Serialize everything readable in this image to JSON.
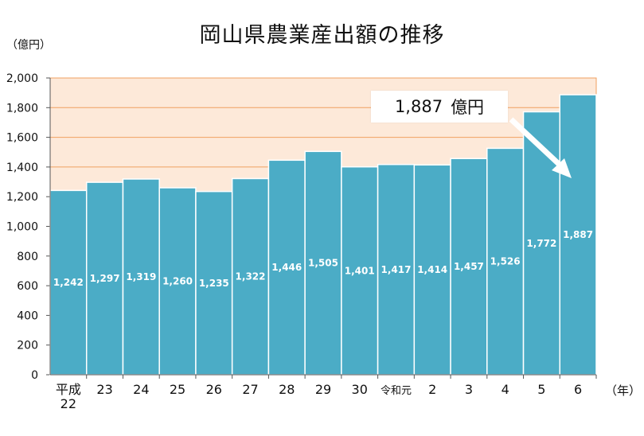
{
  "header": {
    "title": "岡山県農業産出額の推移",
    "y_unit": "（億円）",
    "x_unit": "（年）"
  },
  "callout": {
    "value": "1,887",
    "unit": "億円"
  },
  "colors": {
    "bar": "#4bacc6",
    "plot_bg": "#fde9d9",
    "grid": "#f0a060",
    "bar_label": "#ffffff",
    "arrow": "#ffffff"
  },
  "chart_data": {
    "type": "bar",
    "title": "岡山県農業産出額の推移",
    "ylabel": "（億円）",
    "xlabel": "（年）",
    "ylim": [
      0,
      2000
    ],
    "yticks": [
      "0",
      "200",
      "400",
      "600",
      "800",
      "1,000",
      "1,200",
      "1,400",
      "1,600",
      "1,800",
      "2,000"
    ],
    "grid": true,
    "categories": [
      "平成22",
      "23",
      "24",
      "25",
      "26",
      "27",
      "28",
      "29",
      "30",
      "令和元",
      "2",
      "3",
      "4",
      "5",
      "6"
    ],
    "category_labels": [
      [
        "平成",
        "22"
      ],
      [
        "23"
      ],
      [
        "24"
      ],
      [
        "25"
      ],
      [
        "26"
      ],
      [
        "27"
      ],
      [
        "28"
      ],
      [
        "29"
      ],
      [
        "30"
      ],
      [
        "令和元"
      ],
      [
        "2"
      ],
      [
        "3"
      ],
      [
        "4"
      ],
      [
        "5"
      ],
      [
        "6"
      ]
    ],
    "values": [
      1242,
      1297,
      1319,
      1260,
      1235,
      1322,
      1446,
      1505,
      1401,
      1417,
      1414,
      1457,
      1526,
      1772,
      1887
    ],
    "value_labels": [
      "1,242",
      "1,297",
      "1,319",
      "1,260",
      "1,235",
      "1,322",
      "1,446",
      "1,505",
      "1,401",
      "1,417",
      "1,414",
      "1,457",
      "1,526",
      "1,772",
      "1,887"
    ]
  }
}
